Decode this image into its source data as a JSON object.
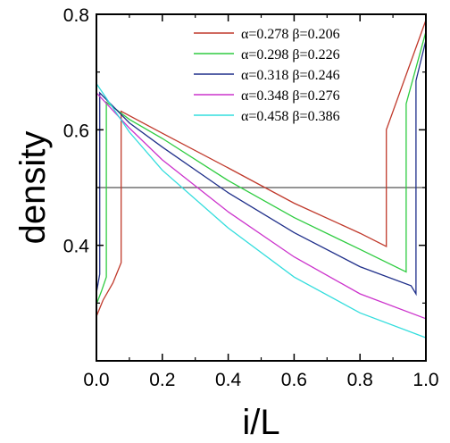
{
  "chart_data": {
    "type": "line",
    "xlabel": "i/L",
    "ylabel": "density",
    "xlim": [
      0.0,
      1.0
    ],
    "ylim": [
      0.2,
      0.8
    ],
    "xticks": [
      0.0,
      0.2,
      0.4,
      0.6,
      0.8,
      1.0
    ],
    "xtick_labels": [
      "0.0",
      "0.2",
      "0.4",
      "0.6",
      "0.8",
      "1.0"
    ],
    "yticks": [
      0.4,
      0.6,
      0.8
    ],
    "ytick_labels": [
      "0.4",
      "0.6",
      "0.8"
    ],
    "hline": 0.5,
    "legend_position": "top-right",
    "grid": false,
    "series": [
      {
        "name": "α=0.278 β=0.206",
        "color": "#c0392b",
        "points": [
          [
            0.0,
            0.277
          ],
          [
            0.02,
            0.305
          ],
          [
            0.05,
            0.335
          ],
          [
            0.075,
            0.37
          ],
          [
            0.075,
            0.632
          ],
          [
            0.2,
            0.594
          ],
          [
            0.4,
            0.534
          ],
          [
            0.6,
            0.473
          ],
          [
            0.8,
            0.421
          ],
          [
            0.88,
            0.398
          ],
          [
            0.88,
            0.6
          ],
          [
            1.0,
            0.79
          ]
        ]
      },
      {
        "name": "α=0.298 β=0.226",
        "color": "#2ecc40",
        "points": [
          [
            0.0,
            0.298
          ],
          [
            0.015,
            0.32
          ],
          [
            0.03,
            0.345
          ],
          [
            0.03,
            0.648
          ],
          [
            0.1,
            0.618
          ],
          [
            0.2,
            0.585
          ],
          [
            0.4,
            0.512
          ],
          [
            0.6,
            0.448
          ],
          [
            0.8,
            0.393
          ],
          [
            0.94,
            0.354
          ],
          [
            0.94,
            0.645
          ],
          [
            1.0,
            0.77
          ]
        ]
      },
      {
        "name": "α=0.318 β=0.246",
        "color": "#1f2f8a",
        "points": [
          [
            0.0,
            0.318
          ],
          [
            0.01,
            0.35
          ],
          [
            0.01,
            0.664
          ],
          [
            0.1,
            0.612
          ],
          [
            0.2,
            0.57
          ],
          [
            0.4,
            0.491
          ],
          [
            0.6,
            0.422
          ],
          [
            0.8,
            0.363
          ],
          [
            0.955,
            0.33
          ],
          [
            0.97,
            0.316
          ],
          [
            0.97,
            0.685
          ],
          [
            1.0,
            0.755
          ]
        ]
      },
      {
        "name": "α=0.348 β=0.276",
        "color": "#cc33cc",
        "points": [
          [
            0.0,
            0.664
          ],
          [
            0.1,
            0.603
          ],
          [
            0.2,
            0.548
          ],
          [
            0.4,
            0.458
          ],
          [
            0.6,
            0.38
          ],
          [
            0.8,
            0.316
          ],
          [
            1.0,
            0.273
          ]
        ]
      },
      {
        "name": "α=0.458 β=0.386",
        "color": "#33dddd",
        "points": [
          [
            0.0,
            0.68
          ],
          [
            0.1,
            0.596
          ],
          [
            0.2,
            0.53
          ],
          [
            0.4,
            0.43
          ],
          [
            0.6,
            0.345
          ],
          [
            0.8,
            0.283
          ],
          [
            1.0,
            0.24
          ]
        ]
      }
    ]
  },
  "colors": {
    "axis": "#000000",
    "hline": "#555555"
  }
}
